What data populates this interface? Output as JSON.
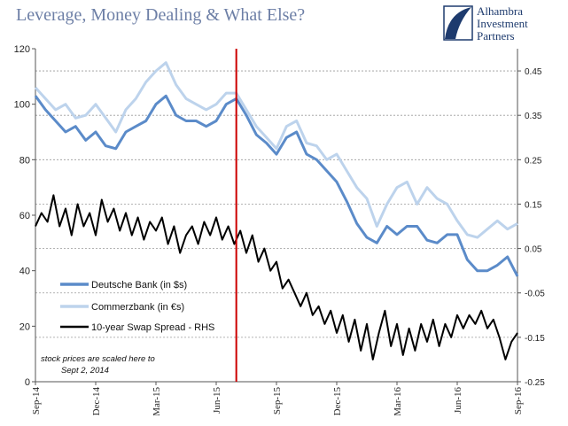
{
  "header": {
    "title": "Leverage, Money Dealing & What Else?",
    "logo_lines": [
      "Alhambra",
      "Investment",
      "Partners"
    ]
  },
  "note_lines": [
    "stock prices are scaled here to",
    "Sept 2, 2014"
  ],
  "chart_data": {
    "type": "line",
    "title": "Leverage, Money Dealing & What Else?",
    "x_tick_labels": [
      "Sep-14",
      "Dec-14",
      "Mar-15",
      "Jun-15",
      "Sep-15",
      "Dec-15",
      "Mar-16",
      "Jun-16",
      "Sep-16"
    ],
    "x_tick_months": [
      0,
      3,
      6,
      9,
      12,
      15,
      18,
      21,
      24
    ],
    "xlim_months": [
      0,
      24
    ],
    "y_left": {
      "lim": [
        0,
        120
      ],
      "ticks": [
        "0",
        "20",
        "40",
        "60",
        "80",
        "100",
        "120"
      ]
    },
    "y_right": {
      "lim": [
        -0.25,
        0.5
      ],
      "ticks": [
        "-0.25",
        "-0.15",
        "-0.05",
        "0.05",
        "0.15",
        "0.25",
        "0.35",
        "0.45"
      ]
    },
    "vline_month": 10,
    "vline_color": "#cc0000",
    "grid_right": true,
    "legend_position": "left-center",
    "series": [
      {
        "name": "Deutsche Bank (in $s)",
        "axis": "left",
        "color": "#5b8bc9",
        "width": 3,
        "points": [
          [
            0,
            103
          ],
          [
            0.5,
            98
          ],
          [
            1,
            94
          ],
          [
            1.5,
            90
          ],
          [
            2,
            92
          ],
          [
            2.5,
            87
          ],
          [
            3,
            90
          ],
          [
            3.5,
            85
          ],
          [
            4,
            84
          ],
          [
            4.5,
            90
          ],
          [
            5,
            92
          ],
          [
            5.5,
            94
          ],
          [
            6,
            100
          ],
          [
            6.5,
            103
          ],
          [
            7,
            96
          ],
          [
            7.5,
            94
          ],
          [
            8,
            94
          ],
          [
            8.5,
            92
          ],
          [
            9,
            94
          ],
          [
            9.5,
            100
          ],
          [
            10,
            102
          ],
          [
            10.5,
            96
          ],
          [
            11,
            89
          ],
          [
            11.5,
            86
          ],
          [
            12,
            82
          ],
          [
            12.5,
            88
          ],
          [
            13,
            90
          ],
          [
            13.5,
            82
          ],
          [
            14,
            80
          ],
          [
            14.5,
            76
          ],
          [
            15,
            72
          ],
          [
            15.5,
            65
          ],
          [
            16,
            57
          ],
          [
            16.5,
            52
          ],
          [
            17,
            50
          ],
          [
            17.5,
            56
          ],
          [
            18,
            53
          ],
          [
            18.5,
            56
          ],
          [
            19,
            56
          ],
          [
            19.5,
            51
          ],
          [
            20,
            50
          ],
          [
            20.5,
            53
          ],
          [
            21,
            53
          ],
          [
            21.5,
            44
          ],
          [
            22,
            40
          ],
          [
            22.5,
            40
          ],
          [
            23,
            42
          ],
          [
            23.5,
            45
          ],
          [
            24,
            38
          ]
        ]
      },
      {
        "name": "Commerzbank (in €s)",
        "axis": "left",
        "color": "#bdd3ec",
        "width": 3,
        "points": [
          [
            0,
            106
          ],
          [
            0.5,
            102
          ],
          [
            1,
            98
          ],
          [
            1.5,
            100
          ],
          [
            2,
            95
          ],
          [
            2.5,
            96
          ],
          [
            3,
            100
          ],
          [
            3.5,
            95
          ],
          [
            4,
            90
          ],
          [
            4.5,
            98
          ],
          [
            5,
            102
          ],
          [
            5.5,
            108
          ],
          [
            6,
            112
          ],
          [
            6.5,
            115
          ],
          [
            7,
            107
          ],
          [
            7.5,
            102
          ],
          [
            8,
            100
          ],
          [
            8.5,
            98
          ],
          [
            9,
            100
          ],
          [
            9.5,
            104
          ],
          [
            10,
            104
          ],
          [
            10.5,
            98
          ],
          [
            11,
            92
          ],
          [
            11.5,
            88
          ],
          [
            12,
            84
          ],
          [
            12.5,
            92
          ],
          [
            13,
            94
          ],
          [
            13.5,
            86
          ],
          [
            14,
            85
          ],
          [
            14.5,
            80
          ],
          [
            15,
            82
          ],
          [
            15.5,
            76
          ],
          [
            16,
            70
          ],
          [
            16.5,
            66
          ],
          [
            17,
            56
          ],
          [
            17.5,
            64
          ],
          [
            18,
            70
          ],
          [
            18.5,
            72
          ],
          [
            19,
            64
          ],
          [
            19.5,
            70
          ],
          [
            20,
            66
          ],
          [
            20.5,
            64
          ],
          [
            21,
            58
          ],
          [
            21.5,
            53
          ],
          [
            22,
            52
          ],
          [
            22.5,
            55
          ],
          [
            23,
            58
          ],
          [
            23.5,
            55
          ],
          [
            24,
            57
          ]
        ]
      },
      {
        "name": "10-year Swap Spread - RHS",
        "axis": "right",
        "color": "#000000",
        "width": 2,
        "points": [
          [
            0,
            0.1
          ],
          [
            0.3,
            0.13
          ],
          [
            0.6,
            0.11
          ],
          [
            0.9,
            0.17
          ],
          [
            1.2,
            0.1
          ],
          [
            1.5,
            0.14
          ],
          [
            1.8,
            0.08
          ],
          [
            2.1,
            0.15
          ],
          [
            2.4,
            0.1
          ],
          [
            2.7,
            0.13
          ],
          [
            3,
            0.08
          ],
          [
            3.3,
            0.16
          ],
          [
            3.6,
            0.11
          ],
          [
            3.9,
            0.14
          ],
          [
            4.2,
            0.09
          ],
          [
            4.5,
            0.13
          ],
          [
            4.8,
            0.08
          ],
          [
            5.1,
            0.12
          ],
          [
            5.4,
            0.07
          ],
          [
            5.7,
            0.11
          ],
          [
            6,
            0.09
          ],
          [
            6.3,
            0.12
          ],
          [
            6.6,
            0.06
          ],
          [
            6.9,
            0.1
          ],
          [
            7.2,
            0.04
          ],
          [
            7.5,
            0.08
          ],
          [
            7.8,
            0.1
          ],
          [
            8.1,
            0.06
          ],
          [
            8.4,
            0.11
          ],
          [
            8.7,
            0.08
          ],
          [
            9,
            0.12
          ],
          [
            9.3,
            0.07
          ],
          [
            9.6,
            0.1
          ],
          [
            9.9,
            0.06
          ],
          [
            10.2,
            0.09
          ],
          [
            10.5,
            0.04
          ],
          [
            10.8,
            0.08
          ],
          [
            11.1,
            0.02
          ],
          [
            11.4,
            0.05
          ],
          [
            11.7,
            0.0
          ],
          [
            12,
            0.02
          ],
          [
            12.3,
            -0.04
          ],
          [
            12.6,
            -0.02
          ],
          [
            12.9,
            -0.05
          ],
          [
            13.2,
            -0.08
          ],
          [
            13.5,
            -0.05
          ],
          [
            13.8,
            -0.1
          ],
          [
            14.1,
            -0.08
          ],
          [
            14.4,
            -0.12
          ],
          [
            14.7,
            -0.09
          ],
          [
            15,
            -0.14
          ],
          [
            15.3,
            -0.1
          ],
          [
            15.6,
            -0.16
          ],
          [
            15.9,
            -0.11
          ],
          [
            16.2,
            -0.18
          ],
          [
            16.5,
            -0.12
          ],
          [
            16.8,
            -0.2
          ],
          [
            17.1,
            -0.14
          ],
          [
            17.4,
            -0.09
          ],
          [
            17.7,
            -0.17
          ],
          [
            18,
            -0.12
          ],
          [
            18.3,
            -0.19
          ],
          [
            18.6,
            -0.13
          ],
          [
            18.9,
            -0.18
          ],
          [
            19.2,
            -0.12
          ],
          [
            19.5,
            -0.16
          ],
          [
            19.8,
            -0.11
          ],
          [
            20.1,
            -0.17
          ],
          [
            20.4,
            -0.12
          ],
          [
            20.7,
            -0.15
          ],
          [
            21,
            -0.1
          ],
          [
            21.3,
            -0.13
          ],
          [
            21.6,
            -0.1
          ],
          [
            21.9,
            -0.12
          ],
          [
            22.2,
            -0.09
          ],
          [
            22.5,
            -0.13
          ],
          [
            22.8,
            -0.11
          ],
          [
            23.1,
            -0.15
          ],
          [
            23.4,
            -0.2
          ],
          [
            23.7,
            -0.16
          ],
          [
            24,
            -0.14
          ]
        ]
      }
    ]
  }
}
